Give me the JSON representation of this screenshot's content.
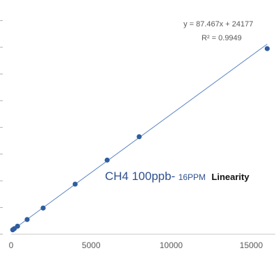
{
  "chart_data": {
    "type": "scatter",
    "title": {
      "main": "CH4 100ppb-",
      "range": "16PPM",
      "suffix": "Linearity"
    },
    "trendline": {
      "equation": "y = 87.467x + 24177",
      "r_squared": "R² = 0.9949",
      "slope": 87.467,
      "intercept": 24177
    },
    "x_ticks": [
      "0",
      "5000",
      "10000",
      "15000"
    ],
    "xlim": [
      0,
      16500
    ],
    "x_tick_values": [
      0,
      5000,
      10000,
      15000
    ],
    "series": [
      {
        "points": [
          {
            "x": 100,
            "y": 33000
          },
          {
            "x": 200,
            "y": 42000
          },
          {
            "x": 400,
            "y": 60000
          },
          {
            "x": 1000,
            "y": 110000
          },
          {
            "x": 2000,
            "y": 196000
          },
          {
            "x": 4000,
            "y": 375000
          },
          {
            "x": 6000,
            "y": 555000
          },
          {
            "x": 8000,
            "y": 730000
          },
          {
            "x": 16000,
            "y": 1390000
          }
        ]
      }
    ],
    "ylim": [
      0,
      1650000
    ],
    "y_grid_values": [
      0,
      200000,
      400000,
      600000,
      800000,
      1000000,
      1200000,
      1400000,
      1600000
    ],
    "grid": false,
    "colors": {
      "marker": "#2f5d9f",
      "trendline": "#5b84c4",
      "axis": "#c8c8c8"
    }
  }
}
